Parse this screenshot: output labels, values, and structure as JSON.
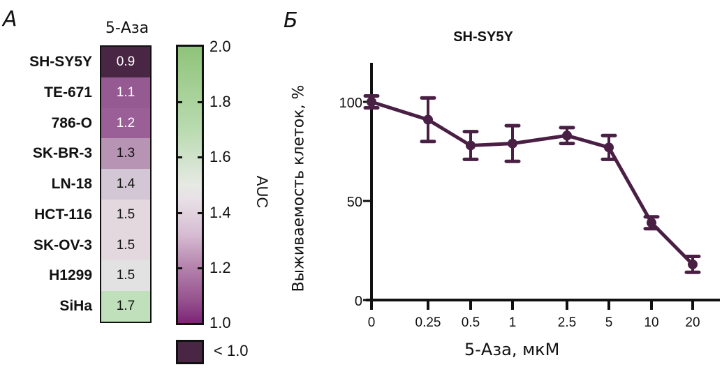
{
  "panel_a": {
    "letter": "А",
    "column_title": "5-Аза",
    "rows": [
      {
        "label": "SH-SY5Y",
        "value": "0.9",
        "color": "#4a2645",
        "text_color": "#ffffff"
      },
      {
        "label": "TE-671",
        "value": "1.1",
        "color": "#965a93",
        "text_color": "#ffffff"
      },
      {
        "label": "786-O",
        "value": "1.2",
        "color": "#9a5f96",
        "text_color": "#ffffff"
      },
      {
        "label": "SK-BR-3",
        "value": "1.3",
        "color": "#b794b4",
        "text_color": "#111111"
      },
      {
        "label": "LN-18",
        "value": "1.4",
        "color": "#d4c7d5",
        "text_color": "#111111"
      },
      {
        "label": "HCT-116",
        "value": "1.5",
        "color": "#e3d8dd",
        "text_color": "#111111"
      },
      {
        "label": "SK-OV-3",
        "value": "1.5",
        "color": "#e3d8dd",
        "text_color": "#111111"
      },
      {
        "label": "H1299",
        "value": "1.5",
        "color": "#e2e2e2",
        "text_color": "#111111"
      },
      {
        "label": "SiHa",
        "value": "1.7",
        "color": "#bfe0bb",
        "text_color": "#111111"
      }
    ],
    "colorbar": {
      "title": "AUC",
      "ticks": [
        "2.0",
        "1.8",
        "1.6",
        "1.4",
        "1.2",
        "1.0"
      ],
      "range": [
        1.0,
        2.0
      ],
      "under_label": "< 1.0",
      "under_color": "#4a2645"
    }
  },
  "panel_b": {
    "letter": "Б"
  },
  "chart_data": [
    {
      "type": "heatmap",
      "title": "5-Аза",
      "categories": [
        "SH-SY5Y",
        "TE-671",
        "786-O",
        "SK-BR-3",
        "LN-18",
        "HCT-116",
        "SK-OV-3",
        "H1299",
        "SiHa"
      ],
      "values": [
        0.9,
        1.1,
        1.2,
        1.3,
        1.4,
        1.5,
        1.5,
        1.5,
        1.7
      ],
      "colorbar_label": "AUC",
      "colorbar_range": [
        1.0,
        2.0
      ]
    },
    {
      "type": "line",
      "title": "SH-SY5Y",
      "xlabel": "5-Аза, мкМ",
      "ylabel": "Выживаемость клеток, %",
      "x": [
        "0",
        "0.25",
        "0.5",
        "1",
        "2.5",
        "5",
        "10",
        "20"
      ],
      "series": [
        {
          "name": "SH-SY5Y",
          "color": "#4a1f44",
          "values": [
            100,
            91,
            78,
            79,
            83,
            77,
            39,
            18
          ],
          "error": [
            3,
            11,
            7,
            9,
            4,
            6,
            3,
            4
          ]
        }
      ],
      "yticks": [
        "0",
        "50",
        "100"
      ],
      "ylim": [
        0,
        120
      ],
      "grid": false,
      "legend": "none"
    }
  ]
}
